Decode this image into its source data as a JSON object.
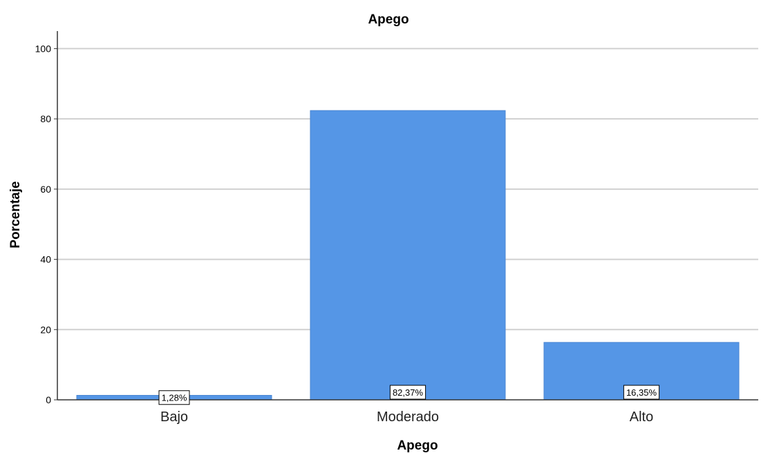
{
  "chart_data": {
    "type": "bar",
    "title": "Apego",
    "xlabel": "Apego",
    "ylabel": "Porcentaje",
    "categories": [
      "Bajo",
      "Moderado",
      "Alto"
    ],
    "values": [
      1.28,
      82.37,
      16.35
    ],
    "data_labels": [
      "1,28%",
      "82,37%",
      "16,35%"
    ],
    "ylim": [
      0,
      105
    ],
    "yticks": [
      0,
      20,
      40,
      60,
      80,
      100
    ],
    "ytick_labels": [
      "0",
      "20",
      "40",
      "60",
      "80",
      "100"
    ],
    "grid": true,
    "legend": "none",
    "colors": {
      "bar": "#5596e6",
      "bar_stroke": "#4a86d2",
      "grid": "#d0d0d0",
      "axis": "#333333"
    }
  }
}
